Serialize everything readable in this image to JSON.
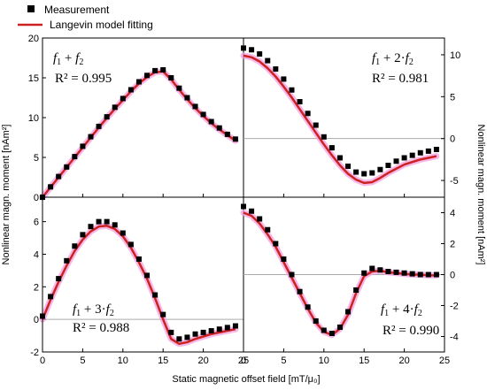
{
  "legend": {
    "measurement": "Measurement",
    "fit": "Langevin model fitting"
  },
  "xlabel": "Static magnetic offset field [mT/μ₀]",
  "ylabel": "Nonlinear magn. moment [nAm²]",
  "colors": {
    "measurement": "#000000",
    "fit": "#cc2222",
    "glow": "#f4a0e0",
    "zero_line": "#aaaaaa"
  },
  "chart_data": [
    {
      "type": "scatter+line",
      "panel": "top-left",
      "label": {
        "a": "f",
        "a_sub": "1",
        "op": " + ",
        "b": "f",
        "b_sub": "2",
        "coef": ""
      },
      "r2": "R² = 0.995",
      "xlim": [
        0,
        25
      ],
      "ylim": [
        0,
        20
      ],
      "xticks": [
        0,
        5,
        10,
        15,
        20
      ],
      "yticks": [
        0,
        5,
        10,
        15,
        20
      ],
      "measurement": {
        "x": [
          0,
          1,
          2,
          3,
          4,
          5,
          6,
          7,
          8,
          9,
          10,
          11,
          12,
          13,
          14,
          15,
          16,
          17,
          18,
          19,
          20,
          21,
          22,
          23,
          24
        ],
        "y": [
          0,
          1.3,
          2.6,
          3.8,
          5.1,
          6.4,
          7.6,
          8.9,
          10.1,
          11.3,
          12.4,
          13.5,
          14.5,
          15.3,
          15.9,
          16.0,
          15.0,
          13.7,
          12.5,
          11.4,
          10.4,
          9.5,
          8.7,
          7.9,
          7.3
        ]
      },
      "fit": {
        "x": [
          0,
          1,
          2,
          3,
          4,
          5,
          6,
          7,
          8,
          9,
          10,
          11,
          12,
          13,
          14,
          15,
          16,
          17,
          18,
          19,
          20,
          21,
          22,
          23,
          24
        ],
        "y": [
          0,
          1.25,
          2.5,
          3.75,
          5.0,
          6.25,
          7.5,
          8.75,
          9.95,
          11.1,
          12.2,
          13.3,
          14.3,
          15.1,
          15.7,
          15.8,
          14.8,
          13.5,
          12.3,
          11.2,
          10.2,
          9.3,
          8.5,
          7.8,
          7.1
        ]
      }
    },
    {
      "type": "scatter+line",
      "panel": "top-right",
      "label": {
        "a": "f",
        "a_sub": "1",
        "op": " + 2·",
        "b": "f",
        "b_sub": "2",
        "coef": ""
      },
      "r2": "R² = 0.981",
      "xlim": [
        0,
        25
      ],
      "ylim": [
        -7,
        12
      ],
      "xticks": [
        0,
        5,
        10,
        15,
        20,
        25
      ],
      "yticks": [
        -5,
        0,
        5,
        10
      ],
      "measurement": {
        "x": [
          0,
          1,
          2,
          3,
          4,
          5,
          6,
          7,
          8,
          9,
          10,
          11,
          12,
          13,
          14,
          15,
          16,
          17,
          18,
          19,
          20,
          21,
          22,
          23,
          24
        ],
        "y": [
          10.8,
          10.6,
          10.1,
          9.3,
          8.3,
          7.1,
          5.8,
          4.4,
          3.0,
          1.6,
          0.2,
          -1.1,
          -2.3,
          -3.3,
          -4.0,
          -4.2,
          -4.1,
          -3.7,
          -3.2,
          -2.7,
          -2.3,
          -2.0,
          -1.7,
          -1.5,
          -1.3
        ]
      },
      "fit": {
        "x": [
          0,
          1,
          2,
          3,
          4,
          5,
          6,
          7,
          8,
          9,
          10,
          11,
          12,
          13,
          14,
          15,
          16,
          17,
          18,
          19,
          20,
          21,
          22,
          23,
          24
        ],
        "y": [
          9.9,
          9.7,
          9.2,
          8.4,
          7.4,
          6.2,
          4.9,
          3.5,
          2.1,
          0.7,
          -0.7,
          -2.0,
          -3.2,
          -4.2,
          -4.9,
          -5.3,
          -5.2,
          -4.7,
          -4.1,
          -3.6,
          -3.1,
          -2.8,
          -2.5,
          -2.3,
          -2.1
        ]
      }
    },
    {
      "type": "scatter+line",
      "panel": "bottom-left",
      "label": {
        "a": "f",
        "a_sub": "1",
        "op": " + 3·",
        "b": "f",
        "b_sub": "2",
        "coef": ""
      },
      "r2": "R² = 0.988",
      "xlim": [
        0,
        25
      ],
      "ylim": [
        -2,
        7.5
      ],
      "xticks": [
        0,
        5,
        10,
        15,
        20,
        25
      ],
      "yticks": [
        -2,
        0,
        2,
        4,
        6
      ],
      "measurement": {
        "x": [
          0,
          1,
          2,
          3,
          4,
          5,
          6,
          7,
          8,
          9,
          10,
          11,
          12,
          13,
          14,
          15,
          16,
          17,
          18,
          19,
          20,
          21,
          22,
          23,
          24
        ],
        "y": [
          0.2,
          1.4,
          2.5,
          3.6,
          4.5,
          5.2,
          5.7,
          6.0,
          6.0,
          5.8,
          5.3,
          4.6,
          3.7,
          2.7,
          1.5,
          0.3,
          -0.8,
          -1.2,
          -1.1,
          -0.9,
          -0.8,
          -0.7,
          -0.6,
          -0.5,
          -0.4
        ]
      },
      "fit": {
        "x": [
          0,
          1,
          2,
          3,
          4,
          5,
          6,
          7,
          8,
          9,
          10,
          11,
          12,
          13,
          14,
          15,
          16,
          17,
          18,
          19,
          20,
          21,
          22,
          23,
          24
        ],
        "y": [
          0,
          1.2,
          2.3,
          3.3,
          4.2,
          4.9,
          5.4,
          5.7,
          5.75,
          5.55,
          5.1,
          4.4,
          3.5,
          2.5,
          1.3,
          0.0,
          -1.2,
          -1.5,
          -1.4,
          -1.2,
          -1.05,
          -0.9,
          -0.8,
          -0.7,
          -0.6
        ]
      }
    },
    {
      "type": "scatter+line",
      "panel": "bottom-right",
      "label": {
        "a": "f",
        "a_sub": "1",
        "op": " + 4·",
        "b": "f",
        "b_sub": "2",
        "coef": ""
      },
      "r2": "R² = 0.990",
      "xlim": [
        0,
        25
      ],
      "ylim": [
        -5,
        5
      ],
      "xticks": [
        0,
        5,
        10,
        15,
        20,
        25
      ],
      "yticks": [
        -4,
        -2,
        0,
        2,
        4
      ],
      "measurement": {
        "x": [
          0,
          1,
          2,
          3,
          4,
          5,
          6,
          7,
          8,
          9,
          10,
          11,
          12,
          13,
          14,
          15,
          16,
          17,
          18,
          19,
          20,
          21,
          22,
          23,
          24
        ],
        "y": [
          4.4,
          4.1,
          3.6,
          2.9,
          2.0,
          1.0,
          0.0,
          -1.1,
          -2.1,
          -3.0,
          -3.6,
          -3.8,
          -3.4,
          -2.4,
          -1.0,
          0.1,
          0.4,
          0.3,
          0.2,
          0.15,
          0.1,
          0.05,
          0.0,
          0.0,
          0.0
        ]
      },
      "fit": {
        "x": [
          0,
          1,
          2,
          3,
          4,
          5,
          6,
          7,
          8,
          9,
          10,
          11,
          12,
          13,
          14,
          15,
          16,
          17,
          18,
          19,
          20,
          21,
          22,
          23,
          24
        ],
        "y": [
          4.0,
          3.8,
          3.3,
          2.6,
          1.8,
          0.8,
          -0.2,
          -1.2,
          -2.2,
          -3.1,
          -3.7,
          -3.9,
          -3.5,
          -2.6,
          -1.2,
          -0.1,
          0.2,
          0.25,
          0.15,
          0.1,
          0.05,
          0.0,
          0.0,
          -0.05,
          -0.05
        ]
      }
    }
  ]
}
